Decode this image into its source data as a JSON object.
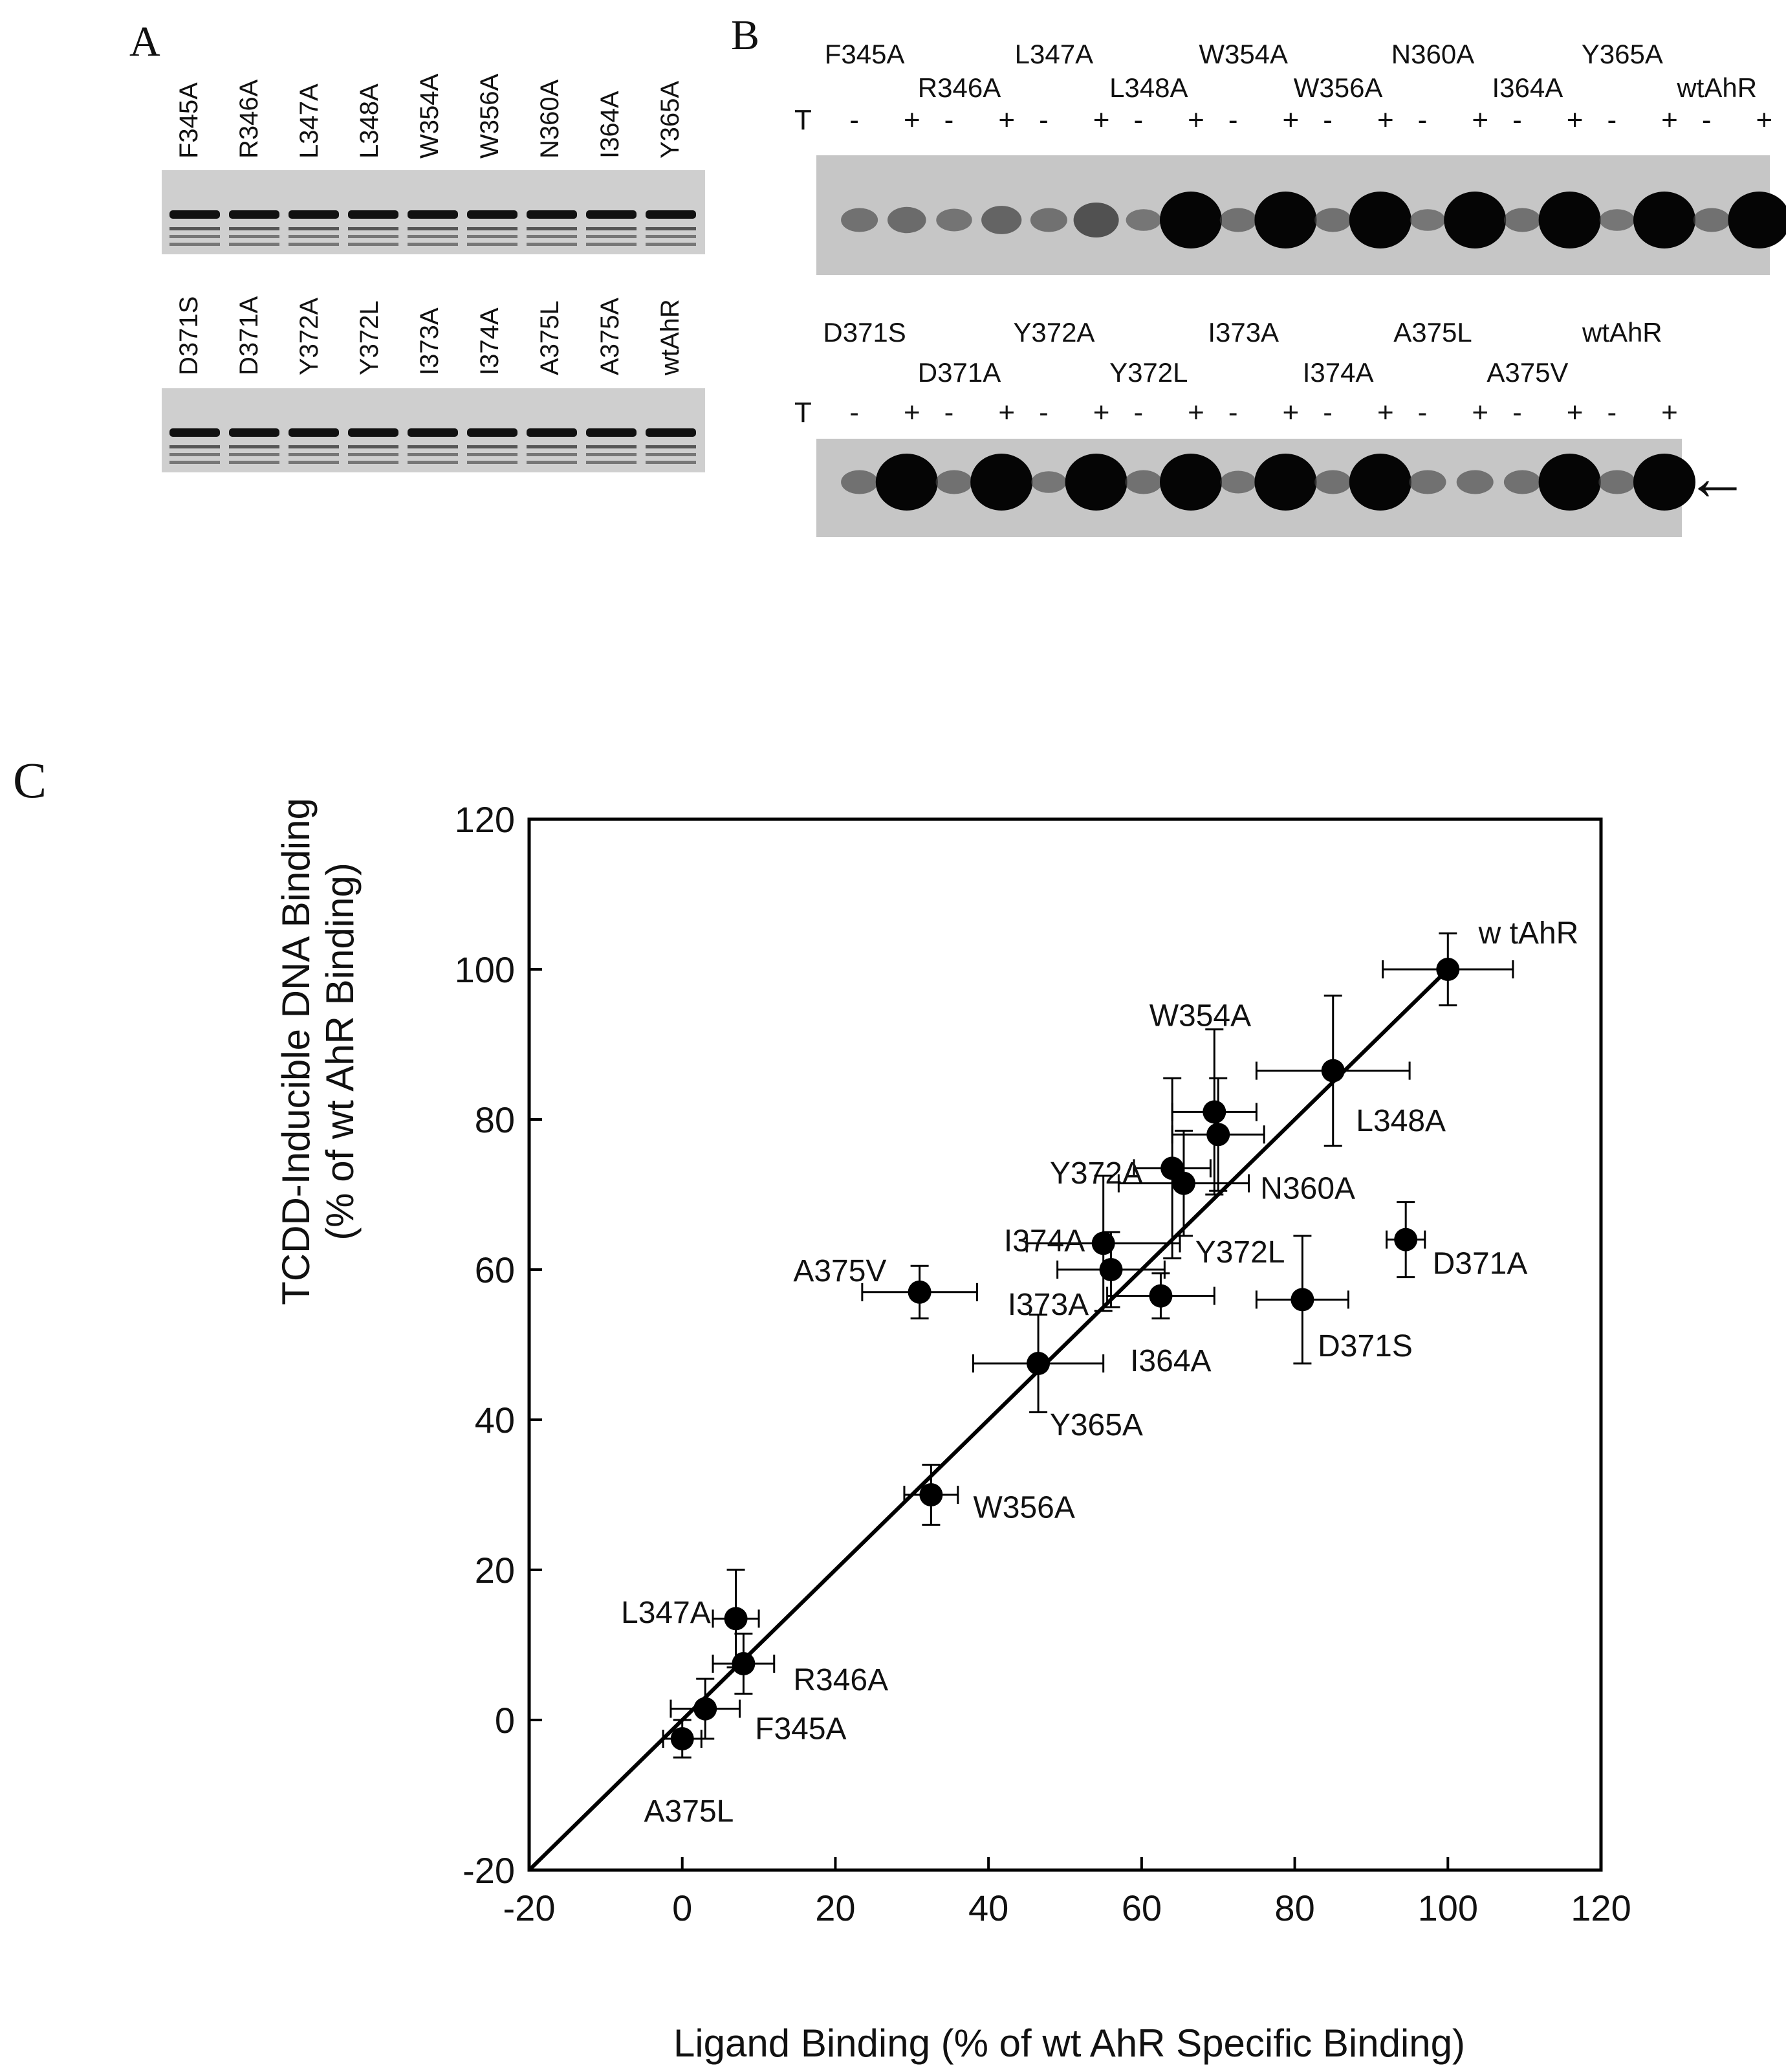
{
  "panels": {
    "a": {
      "letter": "A",
      "row1_lanes": [
        "F345A",
        "R346A",
        "L347A",
        "L348A",
        "W354A",
        "W356A",
        "N360A",
        "I364A",
        "Y365A"
      ],
      "row2_lanes": [
        "D371S",
        "D371A",
        "Y372A",
        "Y372L",
        "I373A",
        "I374A",
        "A375L",
        "A375A",
        "wtAhR"
      ]
    },
    "b": {
      "letter": "B",
      "treatment_label": "T",
      "row1_upper": [
        "F345A",
        "L347A",
        "W354A",
        "N360A",
        "Y365A"
      ],
      "row1_lower": [
        "R346A",
        "L348A",
        "W356A",
        "I364A",
        "wtAhR"
      ],
      "row2_upper": [
        "D371S",
        "Y372A",
        "I373A",
        "A375L",
        "wtAhR"
      ],
      "row2_lower": [
        "D371A",
        "Y372L",
        "I374A",
        "A375V"
      ],
      "signs": [
        "-",
        "+"
      ],
      "row1_intensity": [
        0.25,
        0.3,
        0.22,
        0.35,
        0.25,
        0.5,
        0.2,
        1.0,
        0.25,
        1.0,
        0.25,
        1.0,
        0.2,
        1.0,
        0.25,
        1.0,
        0.2,
        1.0,
        0.25,
        1.0
      ],
      "row2_intensity": [
        0.25,
        1.0,
        0.25,
        1.0,
        0.2,
        1.0,
        0.25,
        1.0,
        0.22,
        1.0,
        0.25,
        1.0,
        0.25,
        0.25,
        0.25,
        1.0,
        0.25,
        1.0
      ],
      "arrow": "←"
    },
    "c": {
      "letter": "C"
    }
  },
  "chart_data": {
    "type": "scatter",
    "xlabel": "Ligand Binding (% of wt AhR Specific Binding)",
    "ylabel_line1": "TCDD-Inducible DNA Binding",
    "ylabel_line2": "(% of wt AhR Binding)",
    "xlim": [
      -20,
      120
    ],
    "ylim": [
      -20,
      120
    ],
    "xticks": [
      "-20",
      "0",
      "20",
      "40",
      "60",
      "80",
      "100",
      "120"
    ],
    "yticks": [
      "-20",
      "0",
      "20",
      "40",
      "60",
      "80",
      "100",
      "120"
    ],
    "fit_line": {
      "x": [
        -20,
        100
      ],
      "y": [
        -20,
        100
      ]
    },
    "points": [
      {
        "label": "w tAhR",
        "x": 100,
        "y": 100,
        "xerr": 8.5,
        "yerr": 4.8,
        "lx": 104,
        "ly": 105
      },
      {
        "label": "L348A",
        "x": 85,
        "y": 86.5,
        "xerr": 10,
        "yerr": 10,
        "lx": 88,
        "ly": 80
      },
      {
        "label": "W354A",
        "x": 69.5,
        "y": 81,
        "xerr": 5.5,
        "yerr": 11,
        "lx": 61,
        "ly": 94
      },
      {
        "label": "N360A",
        "x": 70,
        "y": 78,
        "xerr": 6,
        "yerr": 7.5,
        "lx": 75.5,
        "ly": 71
      },
      {
        "label": "Y372A",
        "x": 64,
        "y": 73.5,
        "xerr": 5,
        "yerr": 12,
        "lx": 48,
        "ly": 73
      },
      {
        "label": "Y372L",
        "x": 65.5,
        "y": 71.5,
        "xerr": 8.5,
        "yerr": 7,
        "lx": 67,
        "ly": 62.5
      },
      {
        "label": "I374A",
        "x": 55,
        "y": 63.5,
        "xerr": 10,
        "yerr": 9,
        "lx": 42,
        "ly": 64
      },
      {
        "label": "D371A",
        "x": 94.5,
        "y": 64,
        "xerr": 2.5,
        "yerr": 5,
        "lx": 98,
        "ly": 61
      },
      {
        "label": "A375V",
        "x": 31,
        "y": 57,
        "xerr": 7.5,
        "yerr": 3.5,
        "lx": 14.5,
        "ly": 60
      },
      {
        "label": "I373A",
        "x": 56,
        "y": 60,
        "xerr": 7,
        "yerr": 5,
        "lx": 42.5,
        "ly": 55.5
      },
      {
        "label": "I364A",
        "x": 62.5,
        "y": 56.5,
        "xerr": 7,
        "yerr": 3,
        "lx": 58.5,
        "ly": 48
      },
      {
        "label": "D371S",
        "x": 81,
        "y": 56,
        "xerr": 6,
        "yerr": 8.5,
        "lx": 83,
        "ly": 50
      },
      {
        "label": "Y365A",
        "x": 46.5,
        "y": 47.5,
        "xerr": 8.5,
        "yerr": 6.5,
        "lx": 48,
        "ly": 39.5
      },
      {
        "label": "W356A",
        "x": 32.5,
        "y": 30,
        "xerr": 3.5,
        "yerr": 4,
        "lx": 38,
        "ly": 28.5
      },
      {
        "label": "L347A",
        "x": 7,
        "y": 13.5,
        "xerr": 3,
        "yerr": 6.5,
        "lx": -8,
        "ly": 14.5
      },
      {
        "label": "R346A",
        "x": 8,
        "y": 7.5,
        "xerr": 4,
        "yerr": 4,
        "lx": 14.5,
        "ly": 5.5
      },
      {
        "label": "F345A",
        "x": 3,
        "y": 1.5,
        "xerr": 4.5,
        "yerr": 4,
        "lx": 9.5,
        "ly": -1
      },
      {
        "label": "A375L",
        "x": 0,
        "y": -2.5,
        "xerr": 2.5,
        "yerr": 2.5,
        "lx": -5,
        "ly": -12
      }
    ]
  }
}
